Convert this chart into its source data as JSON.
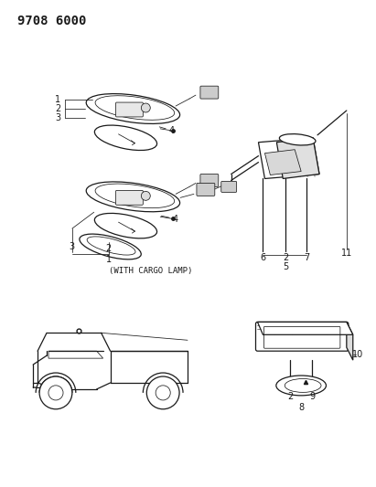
{
  "title": "9708 6000",
  "bg": "#ffffff",
  "lc": "#1a1a1a",
  "tc": "#1a1a1a",
  "cargo_label": "(WITH CARGO LAMP)",
  "figsize": [
    4.11,
    5.33
  ],
  "dpi": 100
}
